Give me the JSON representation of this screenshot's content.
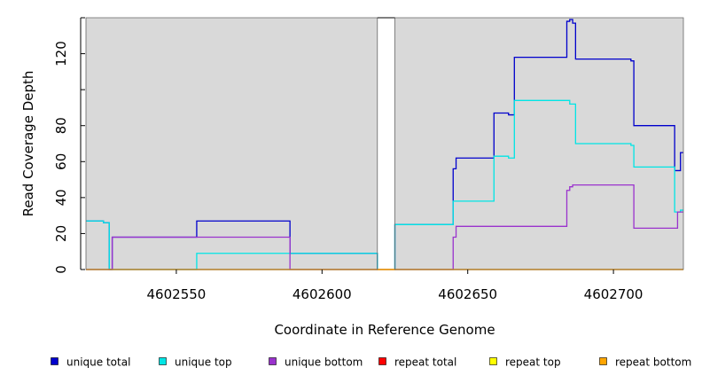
{
  "chart_data": {
    "type": "line",
    "title": "",
    "xlabel": "Coordinate in Reference Genome",
    "ylabel": "Read Coverage Depth",
    "xlim": [
      4602519,
      4602724
    ],
    "ylim": [
      0,
      140
    ],
    "xticks": [
      4602550,
      4602600,
      4602650,
      4602700
    ],
    "yticks": [
      0,
      20,
      40,
      60,
      80,
      100,
      120,
      140
    ],
    "ytick_labels": [
      "0",
      "20",
      "40",
      "60",
      "80",
      "",
      "120",
      ""
    ],
    "gap_region": [
      4602619,
      4602625
    ],
    "panel_color": "#d9d9d9",
    "grid": false,
    "legend_position": "bottom",
    "series": [
      {
        "name": "unique total",
        "color": "#0000cc",
        "points": [
          [
            4602519,
            27
          ],
          [
            4602525,
            27
          ],
          [
            4602525,
            26
          ],
          [
            4602527,
            26
          ],
          [
            4602527,
            0
          ],
          [
            4602528,
            0
          ],
          [
            4602528,
            18
          ],
          [
            4602557,
            18
          ],
          [
            4602557,
            27
          ],
          [
            4602589,
            27
          ],
          [
            4602589,
            9
          ],
          [
            4602619,
            9
          ],
          [
            4602619,
            0
          ],
          [
            4602625,
            0
          ],
          [
            4602625,
            25
          ],
          [
            4602645,
            25
          ],
          [
            4602645,
            56
          ],
          [
            4602646,
            56
          ],
          [
            4602646,
            62
          ],
          [
            4602659,
            62
          ],
          [
            4602659,
            87
          ],
          [
            4602664,
            87
          ],
          [
            4602664,
            86
          ],
          [
            4602666,
            86
          ],
          [
            4602666,
            118
          ],
          [
            4602684,
            118
          ],
          [
            4602684,
            138
          ],
          [
            4602685,
            138
          ],
          [
            4602685,
            139
          ],
          [
            4602686,
            139
          ],
          [
            4602686,
            137
          ],
          [
            4602687,
            137
          ],
          [
            4602687,
            117
          ],
          [
            4602706,
            117
          ],
          [
            4602706,
            116
          ],
          [
            4602707,
            116
          ],
          [
            4602707,
            80
          ],
          [
            4602721,
            80
          ],
          [
            4602721,
            55
          ],
          [
            4602723,
            55
          ],
          [
            4602723,
            65
          ],
          [
            4602724,
            65
          ]
        ]
      },
      {
        "name": "unique top",
        "color": "#00e5e5",
        "points": [
          [
            4602519,
            27
          ],
          [
            4602525,
            27
          ],
          [
            4602525,
            26
          ],
          [
            4602527,
            26
          ],
          [
            4602527,
            0
          ],
          [
            4602557,
            0
          ],
          [
            4602557,
            9
          ],
          [
            4602589,
            9
          ],
          [
            4602589,
            9
          ],
          [
            4602619,
            9
          ],
          [
            4602619,
            0
          ],
          [
            4602625,
            0
          ],
          [
            4602625,
            25
          ],
          [
            4602645,
            25
          ],
          [
            4602645,
            38
          ],
          [
            4602659,
            38
          ],
          [
            4602659,
            63
          ],
          [
            4602664,
            63
          ],
          [
            4602664,
            62
          ],
          [
            4602666,
            62
          ],
          [
            4602666,
            94
          ],
          [
            4602685,
            94
          ],
          [
            4602685,
            92
          ],
          [
            4602687,
            92
          ],
          [
            4602687,
            70
          ],
          [
            4602706,
            70
          ],
          [
            4602706,
            69
          ],
          [
            4602707,
            69
          ],
          [
            4602707,
            57
          ],
          [
            4602721,
            57
          ],
          [
            4602721,
            32
          ],
          [
            4602723,
            32
          ],
          [
            4602723,
            33
          ],
          [
            4602724,
            33
          ]
        ]
      },
      {
        "name": "unique bottom",
        "color": "#9a32cd",
        "points": [
          [
            4602519,
            0
          ],
          [
            4602528,
            0
          ],
          [
            4602528,
            18
          ],
          [
            4602557,
            18
          ],
          [
            4602589,
            18
          ],
          [
            4602589,
            0
          ],
          [
            4602645,
            0
          ],
          [
            4602645,
            18
          ],
          [
            4602646,
            18
          ],
          [
            4602646,
            24
          ],
          [
            4602684,
            24
          ],
          [
            4602684,
            44
          ],
          [
            4602685,
            44
          ],
          [
            4602685,
            46
          ],
          [
            4602686,
            46
          ],
          [
            4602686,
            47
          ],
          [
            4602707,
            47
          ],
          [
            4602707,
            23
          ],
          [
            4602722,
            23
          ],
          [
            4602722,
            32
          ],
          [
            4602724,
            32
          ]
        ]
      },
      {
        "name": "repeat total",
        "color": "#ff0000",
        "points": [
          [
            4602519,
            0
          ],
          [
            4602724,
            0
          ]
        ]
      },
      {
        "name": "repeat top",
        "color": "#ffff00",
        "points": [
          [
            4602519,
            0
          ],
          [
            4602724,
            0
          ]
        ]
      },
      {
        "name": "repeat bottom",
        "color": "#ffa500",
        "points": [
          [
            4602519,
            0
          ],
          [
            4602724,
            0
          ]
        ]
      }
    ]
  }
}
